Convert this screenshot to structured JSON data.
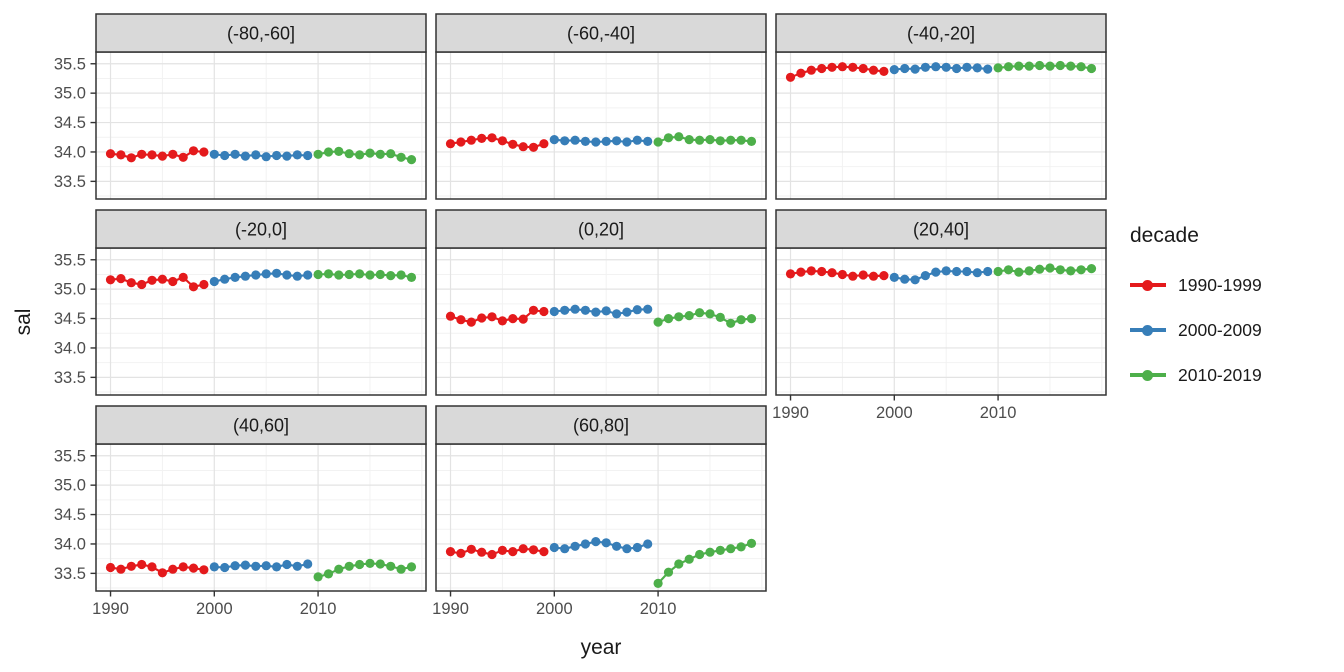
{
  "axes": {
    "x_title": "year",
    "y_title": "sal"
  },
  "legend": {
    "title": "decade",
    "entries": [
      {
        "label": "1990-1999",
        "color": "#E41A1C"
      },
      {
        "label": "2000-2009",
        "color": "#377EB8"
      },
      {
        "label": "2010-2019",
        "color": "#4DAF4A"
      }
    ]
  },
  "style": {
    "strip_bg": "#D9D9D9",
    "strip_text": "#1A1A1A",
    "panel_border": "#333333",
    "grid_major": "#E3E3E3",
    "grid_minor": "#F2F2F2",
    "tick_text": "#4D4D4D",
    "tick_mark": "#333333"
  },
  "chart_data": {
    "type": "line",
    "title": "",
    "xlabel": "year",
    "ylabel": "sal",
    "legend_position": "right",
    "grid": true,
    "xlim": [
      1988.6,
      2020.4
    ],
    "ylim": [
      33.2,
      35.7
    ],
    "x_ticks": [
      1990,
      2000,
      2010
    ],
    "y_ticks": [
      33.5,
      34.0,
      34.5,
      35.0,
      35.5
    ],
    "x_minor_ticks": [
      1995,
      2005,
      2015,
      2020
    ],
    "y_minor_ticks": [
      33.25,
      33.75,
      34.25,
      34.75,
      35.25
    ],
    "decades": [
      {
        "name": "1990-1999",
        "color": "#E41A1C",
        "start_year": 1990
      },
      {
        "name": "2000-2009",
        "color": "#377EB8",
        "start_year": 2000
      },
      {
        "name": "2010-2019",
        "color": "#4DAF4A",
        "start_year": 2010
      }
    ],
    "facets": [
      {
        "label": "(-80,-60]",
        "series": {
          "1990-1999": [
            33.97,
            33.95,
            33.9,
            33.96,
            33.95,
            33.93,
            33.96,
            33.91,
            34.02,
            34.0
          ],
          "2000-2009": [
            33.96,
            33.94,
            33.96,
            33.93,
            33.95,
            33.92,
            33.94,
            33.93,
            33.95,
            33.94
          ],
          "2010-2019": [
            33.96,
            34.0,
            34.01,
            33.97,
            33.95,
            33.98,
            33.96,
            33.97,
            33.91,
            33.87
          ]
        }
      },
      {
        "label": "(-60,-40]",
        "series": {
          "1990-1999": [
            34.14,
            34.17,
            34.2,
            34.23,
            34.24,
            34.19,
            34.13,
            34.09,
            34.08,
            34.14
          ],
          "2000-2009": [
            34.21,
            34.19,
            34.2,
            34.18,
            34.17,
            34.18,
            34.19,
            34.17,
            34.2,
            34.18
          ],
          "2010-2019": [
            34.17,
            34.24,
            34.26,
            34.21,
            34.2,
            34.21,
            34.19,
            34.2,
            34.2,
            34.18
          ]
        }
      },
      {
        "label": "(-40,-20]",
        "series": {
          "1990-1999": [
            35.27,
            35.34,
            35.39,
            35.42,
            35.44,
            35.45,
            35.44,
            35.42,
            35.39,
            35.37
          ],
          "2000-2009": [
            35.4,
            35.42,
            35.41,
            35.44,
            35.45,
            35.44,
            35.42,
            35.44,
            35.43,
            35.41
          ],
          "2010-2019": [
            35.43,
            35.45,
            35.46,
            35.46,
            35.47,
            35.46,
            35.47,
            35.46,
            35.45,
            35.42
          ]
        }
      },
      {
        "label": "(-20,0]",
        "series": {
          "1990-1999": [
            35.16,
            35.18,
            35.11,
            35.08,
            35.15,
            35.17,
            35.13,
            35.2,
            35.04,
            35.08
          ],
          "2000-2009": [
            35.13,
            35.17,
            35.2,
            35.22,
            35.24,
            35.26,
            35.27,
            35.24,
            35.22,
            35.24
          ],
          "2010-2019": [
            35.25,
            35.26,
            35.24,
            35.25,
            35.26,
            35.24,
            35.25,
            35.23,
            35.24,
            35.2
          ]
        }
      },
      {
        "label": "(0,20]",
        "series": {
          "1990-1999": [
            34.54,
            34.48,
            34.44,
            34.51,
            34.53,
            34.46,
            34.5,
            34.49,
            34.64,
            34.62
          ],
          "2000-2009": [
            34.62,
            34.64,
            34.66,
            34.64,
            34.61,
            34.63,
            34.58,
            34.61,
            34.65,
            34.66
          ],
          "2010-2019": [
            34.44,
            34.5,
            34.53,
            34.55,
            34.6,
            34.58,
            34.52,
            34.42,
            34.48,
            34.5
          ]
        }
      },
      {
        "label": "(20,40]",
        "series": {
          "1990-1999": [
            35.26,
            35.29,
            35.31,
            35.3,
            35.28,
            35.25,
            35.22,
            35.24,
            35.22,
            35.23
          ],
          "2000-2009": [
            35.2,
            35.17,
            35.16,
            35.23,
            35.29,
            35.31,
            35.3,
            35.3,
            35.28,
            35.3
          ],
          "2010-2019": [
            35.3,
            35.33,
            35.29,
            35.31,
            35.34,
            35.36,
            35.33,
            35.31,
            35.33,
            35.35
          ]
        }
      },
      {
        "label": "(40,60]",
        "series": {
          "1990-1999": [
            33.6,
            33.57,
            33.62,
            33.65,
            33.61,
            33.51,
            33.57,
            33.61,
            33.59,
            33.56
          ],
          "2000-2009": [
            33.61,
            33.6,
            33.63,
            33.64,
            33.62,
            33.63,
            33.61,
            33.65,
            33.62,
            33.66
          ],
          "2010-2019": [
            33.44,
            33.49,
            33.57,
            33.62,
            33.65,
            33.67,
            33.66,
            33.62,
            33.57,
            33.61
          ]
        }
      },
      {
        "label": "(60,80]",
        "series": {
          "1990-1999": [
            33.87,
            33.84,
            33.91,
            33.86,
            33.82,
            33.89,
            33.87,
            33.92,
            33.9,
            33.87
          ],
          "2000-2009": [
            33.94,
            33.92,
            33.96,
            34.0,
            34.04,
            34.02,
            33.96,
            33.92,
            33.94,
            34.0
          ],
          "2010-2019": [
            33.33,
            33.52,
            33.66,
            33.74,
            33.82,
            33.86,
            33.89,
            33.92,
            33.95,
            34.01
          ]
        }
      }
    ]
  }
}
